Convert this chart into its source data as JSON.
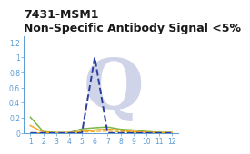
{
  "title1": "7431-MSM1",
  "title2": "Non-Specific Antibody Signal <5%",
  "xlim": [
    0.5,
    12.5
  ],
  "ylim": [
    0,
    1.28
  ],
  "yticks": [
    0,
    0.2,
    0.4,
    0.6,
    0.8,
    1.0,
    1.2
  ],
  "xticks": [
    1,
    2,
    3,
    4,
    5,
    6,
    7,
    8,
    9,
    10,
    11,
    12
  ],
  "blue_dashed": [
    0.0,
    0.0,
    0.0,
    0.0,
    0.0,
    1.0,
    0.0,
    0.0,
    0.0,
    0.0,
    0.0,
    0.0
  ],
  "green_solid": [
    0.21,
    0.02,
    0.005,
    0.005,
    0.055,
    0.07,
    0.08,
    0.05,
    0.04,
    0.02,
    0.01,
    0.005
  ],
  "orange_solid": [
    0.1,
    0.01,
    0.005,
    0.005,
    0.02,
    0.04,
    0.05,
    0.04,
    0.02,
    0.01,
    0.005,
    0.005
  ],
  "green_dashed": [
    0.003,
    0.003,
    0.003,
    0.003,
    0.025,
    0.04,
    0.05,
    0.03,
    0.015,
    0.005,
    0.003,
    0.003
  ],
  "orange_dashed": [
    0.003,
    0.003,
    0.003,
    0.003,
    0.01,
    0.02,
    0.025,
    0.015,
    0.008,
    0.003,
    0.003,
    0.003
  ],
  "blue_color": "#2b3f9e",
  "green_color": "#7ab648",
  "orange_color": "#f5a623",
  "watermark_color": "#d0d4e8",
  "bg_color": "#ffffff",
  "title1_fontsize": 9,
  "title2_fontsize": 8,
  "tick_fontsize": 5.5,
  "axis_color": "#5b9bd5"
}
